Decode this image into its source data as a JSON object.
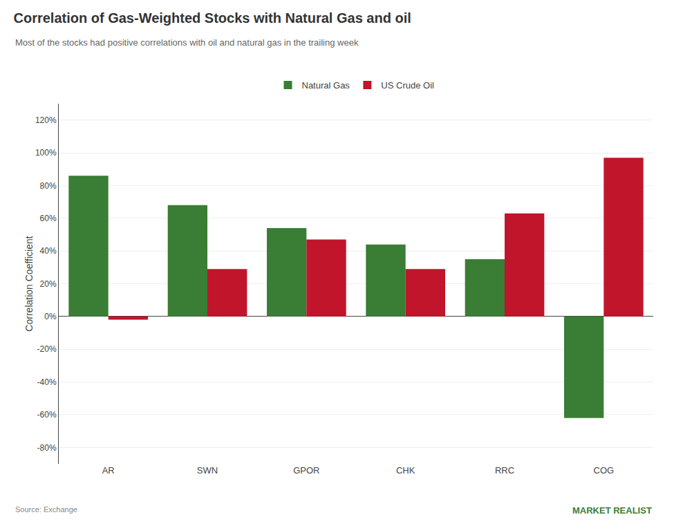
{
  "chart_data": {
    "type": "bar",
    "title": "Correlation of Gas-Weighted Stocks with Natural Gas and oil",
    "subtitle": "Most of the stocks had positive correlations with oil and natural gas in the trailing week",
    "ylabel": "Correlation Coefficient",
    "annotations": [
      "Source: Exchange",
      "MARKET REALIST"
    ],
    "categories": [
      "AR",
      "SWN",
      "GPOR",
      "CHK",
      "RRC",
      "COG"
    ],
    "series": [
      {
        "name": "Natural Gas",
        "color": "#3a7d34",
        "values": [
          0.86,
          0.68,
          0.54,
          0.44,
          0.35,
          -0.62
        ]
      },
      {
        "name": "US Crude Oil",
        "color": "#c0152a",
        "values": [
          -0.02,
          0.29,
          0.47,
          0.29,
          0.63,
          0.97
        ]
      }
    ],
    "ylim": [
      -0.9,
      1.3
    ],
    "yticks": [
      {
        "value": -0.8,
        "label": "-80%"
      },
      {
        "value": -0.6,
        "label": "-60%"
      },
      {
        "value": -0.4,
        "label": "-40%"
      },
      {
        "value": -0.2,
        "label": "-20%"
      },
      {
        "value": 0.0,
        "label": "0%"
      },
      {
        "value": 0.2,
        "label": "20%"
      },
      {
        "value": 0.4,
        "label": "40%"
      },
      {
        "value": 0.6,
        "label": "60%"
      },
      {
        "value": 0.8,
        "label": "80%"
      },
      {
        "value": 1.0,
        "label": "100%"
      },
      {
        "value": 1.2,
        "label": "120%"
      }
    ],
    "grid": true,
    "legend": "top"
  }
}
